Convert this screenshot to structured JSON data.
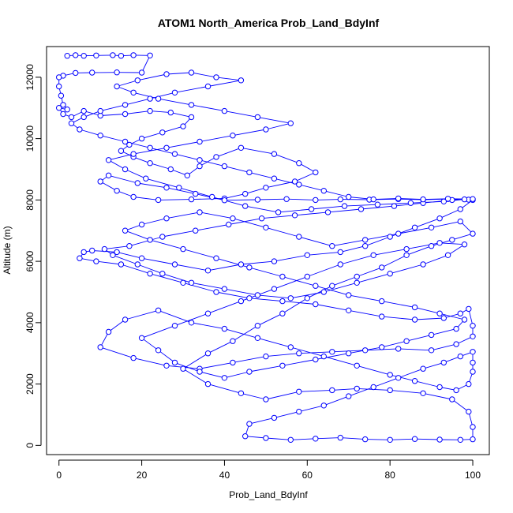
{
  "chart_data": {
    "type": "scatter",
    "title": "ATOM1 North_America Prob_Land_BdyInf",
    "xlabel": "Prob_Land_BdyInf",
    "ylabel": "Altitude (m)",
    "xlim": [
      -3,
      104
    ],
    "ylim": [
      -300,
      13000
    ],
    "x_ticks": [
      0,
      20,
      40,
      60,
      80,
      100
    ],
    "y_ticks": [
      0,
      2000,
      4000,
      6000,
      8000,
      10000,
      12000
    ],
    "grid": false,
    "legend": "none",
    "series": [
      {
        "color": "#0000ff",
        "marker": "open-circle",
        "connected": true,
        "points": [
          [
            2,
            12700
          ],
          [
            4,
            12720
          ],
          [
            6,
            12700
          ],
          [
            9,
            12710
          ],
          [
            13,
            12720
          ],
          [
            15,
            12700
          ],
          [
            18,
            12720
          ],
          [
            22,
            12710
          ],
          [
            20,
            12150
          ],
          [
            14,
            12160
          ],
          [
            8,
            12150
          ],
          [
            4,
            12140
          ],
          [
            1,
            12050
          ],
          [
            0,
            12000
          ],
          [
            0,
            11700
          ],
          [
            0.5,
            11400
          ],
          [
            1,
            11100
          ],
          [
            2,
            10950
          ],
          [
            0,
            11000
          ],
          [
            1,
            10800
          ],
          [
            3,
            10700
          ],
          [
            6,
            10900
          ],
          [
            10,
            10750
          ],
          [
            16,
            10800
          ],
          [
            22,
            10900
          ],
          [
            27,
            10850
          ],
          [
            32,
            10700
          ],
          [
            30,
            10400
          ],
          [
            25,
            10200
          ],
          [
            20,
            10000
          ],
          [
            17,
            9800
          ],
          [
            15,
            9600
          ],
          [
            18,
            9400
          ],
          [
            22,
            9200
          ],
          [
            27,
            9000
          ],
          [
            31,
            8800
          ],
          [
            34,
            9100
          ],
          [
            38,
            9400
          ],
          [
            44,
            9700
          ],
          [
            52,
            9500
          ],
          [
            58,
            9200
          ],
          [
            62,
            8900
          ],
          [
            57,
            8600
          ],
          [
            50,
            8400
          ],
          [
            45,
            8200
          ],
          [
            40,
            8050
          ],
          [
            32,
            8020
          ],
          [
            24,
            8000
          ],
          [
            18,
            8100
          ],
          [
            14,
            8300
          ],
          [
            10,
            8600
          ],
          [
            12,
            8800
          ],
          [
            19,
            8550
          ],
          [
            26,
            8400
          ],
          [
            33,
            8200
          ],
          [
            40,
            7990
          ],
          [
            48,
            8010
          ],
          [
            55,
            8030
          ],
          [
            62,
            8000
          ],
          [
            68,
            8020
          ],
          [
            75,
            8010
          ],
          [
            82,
            8030
          ],
          [
            88,
            8010
          ],
          [
            94,
            8030
          ],
          [
            99,
            8010
          ],
          [
            100,
            8000
          ],
          [
            97,
            7700
          ],
          [
            92,
            7400
          ],
          [
            86,
            7100
          ],
          [
            80,
            6800
          ],
          [
            74,
            6500
          ],
          [
            68,
            6300
          ],
          [
            60,
            6200
          ],
          [
            52,
            6000
          ],
          [
            44,
            5900
          ],
          [
            36,
            5700
          ],
          [
            28,
            5900
          ],
          [
            20,
            6100
          ],
          [
            14,
            6300
          ],
          [
            8,
            6350
          ],
          [
            6,
            6300
          ],
          [
            5,
            6100
          ],
          [
            9,
            6000
          ],
          [
            15,
            5900
          ],
          [
            22,
            5600
          ],
          [
            30,
            5300
          ],
          [
            38,
            5000
          ],
          [
            46,
            4800
          ],
          [
            54,
            4700
          ],
          [
            62,
            4600
          ],
          [
            70,
            4400
          ],
          [
            78,
            4200
          ],
          [
            86,
            4100
          ],
          [
            93,
            4150
          ],
          [
            97,
            4300
          ],
          [
            99,
            4450
          ],
          [
            100,
            3900
          ],
          [
            100,
            3550
          ],
          [
            96,
            3300
          ],
          [
            90,
            3100
          ],
          [
            82,
            3150
          ],
          [
            74,
            3100
          ],
          [
            66,
            3050
          ],
          [
            58,
            3000
          ],
          [
            50,
            2900
          ],
          [
            42,
            2700
          ],
          [
            34,
            2500
          ],
          [
            26,
            2600
          ],
          [
            18,
            2850
          ],
          [
            10,
            3200
          ],
          [
            12,
            3700
          ],
          [
            16,
            4100
          ],
          [
            24,
            4400
          ],
          [
            32,
            4000
          ],
          [
            40,
            3800
          ],
          [
            48,
            3500
          ],
          [
            56,
            3200
          ],
          [
            64,
            2900
          ],
          [
            72,
            2600
          ],
          [
            80,
            2300
          ],
          [
            86,
            2100
          ],
          [
            92,
            1900
          ],
          [
            96,
            1800
          ],
          [
            99,
            2000
          ],
          [
            100,
            2400
          ],
          [
            100,
            2700
          ],
          [
            100,
            3050
          ],
          [
            97,
            2900
          ],
          [
            93,
            2700
          ],
          [
            88,
            2500
          ],
          [
            82,
            2200
          ],
          [
            76,
            1900
          ],
          [
            70,
            1600
          ],
          [
            64,
            1300
          ],
          [
            58,
            1100
          ],
          [
            52,
            900
          ],
          [
            46,
            700
          ],
          [
            45,
            300
          ],
          [
            50,
            240
          ],
          [
            56,
            180
          ],
          [
            62,
            220
          ],
          [
            68,
            250
          ],
          [
            74,
            200
          ],
          [
            80,
            180
          ],
          [
            86,
            210
          ],
          [
            92,
            190
          ],
          [
            97,
            180
          ],
          [
            100,
            200
          ],
          [
            100,
            600
          ],
          [
            99,
            1100
          ],
          [
            95,
            1500
          ],
          [
            88,
            1700
          ],
          [
            80,
            1800
          ],
          [
            72,
            1850
          ],
          [
            66,
            1800
          ],
          [
            58,
            1750
          ],
          [
            50,
            1500
          ],
          [
            44,
            1700
          ],
          [
            36,
            2000
          ],
          [
            30,
            2500
          ],
          [
            36,
            3000
          ],
          [
            42,
            3400
          ],
          [
            48,
            3900
          ],
          [
            54,
            4300
          ],
          [
            60,
            4800
          ],
          [
            66,
            5200
          ],
          [
            72,
            5500
          ],
          [
            78,
            5800
          ],
          [
            84,
            6200
          ],
          [
            90,
            6500
          ],
          [
            95,
            6700
          ],
          [
            100,
            6900
          ],
          [
            97,
            7300
          ],
          [
            90,
            7100
          ],
          [
            82,
            6900
          ],
          [
            74,
            6700
          ],
          [
            66,
            6500
          ],
          [
            58,
            6800
          ],
          [
            50,
            7100
          ],
          [
            42,
            7400
          ],
          [
            34,
            7600
          ],
          [
            26,
            7400
          ],
          [
            20,
            7200
          ],
          [
            16,
            7000
          ],
          [
            22,
            6700
          ],
          [
            30,
            6400
          ],
          [
            38,
            6100
          ],
          [
            46,
            5800
          ],
          [
            54,
            5500
          ],
          [
            62,
            5200
          ],
          [
            70,
            4900
          ],
          [
            78,
            4700
          ],
          [
            86,
            4500
          ],
          [
            92,
            4300
          ],
          [
            98,
            4100
          ],
          [
            96,
            3800
          ],
          [
            90,
            3600
          ],
          [
            84,
            3400
          ],
          [
            78,
            3200
          ],
          [
            70,
            3000
          ],
          [
            62,
            2800
          ],
          [
            54,
            2600
          ],
          [
            46,
            2400
          ],
          [
            40,
            2200
          ],
          [
            34,
            2400
          ],
          [
            28,
            2700
          ],
          [
            24,
            3100
          ],
          [
            20,
            3500
          ],
          [
            28,
            3900
          ],
          [
            36,
            4300
          ],
          [
            44,
            4700
          ],
          [
            52,
            5100
          ],
          [
            60,
            5500
          ],
          [
            68,
            5900
          ],
          [
            76,
            6200
          ],
          [
            84,
            6400
          ],
          [
            92,
            6600
          ],
          [
            98,
            6550
          ],
          [
            94,
            6200
          ],
          [
            88,
            5900
          ],
          [
            80,
            5600
          ],
          [
            72,
            5300
          ],
          [
            64,
            5000
          ],
          [
            56,
            4800
          ],
          [
            48,
            4900
          ],
          [
            40,
            5100
          ],
          [
            32,
            5300
          ],
          [
            25,
            5600
          ],
          [
            19,
            5900
          ],
          [
            13,
            6200
          ],
          [
            11,
            6400
          ],
          [
            17,
            6500
          ],
          [
            25,
            6800
          ],
          [
            33,
            7000
          ],
          [
            41,
            7200
          ],
          [
            49,
            7400
          ],
          [
            57,
            7500
          ],
          [
            65,
            7600
          ],
          [
            73,
            7700
          ],
          [
            81,
            7800
          ],
          [
            88,
            7900
          ],
          [
            95,
            8000
          ],
          [
            98,
            8020
          ],
          [
            93,
            7950
          ],
          [
            85,
            7900
          ],
          [
            77,
            7850
          ],
          [
            69,
            7800
          ],
          [
            61,
            7700
          ],
          [
            53,
            7600
          ],
          [
            45,
            7800
          ],
          [
            37,
            8100
          ],
          [
            29,
            8400
          ],
          [
            21,
            8700
          ],
          [
            16,
            9000
          ],
          [
            12,
            9300
          ],
          [
            18,
            9500
          ],
          [
            26,
            9700
          ],
          [
            34,
            9900
          ],
          [
            42,
            10100
          ],
          [
            50,
            10300
          ],
          [
            56,
            10500
          ],
          [
            48,
            10700
          ],
          [
            40,
            10900
          ],
          [
            32,
            11100
          ],
          [
            24,
            11300
          ],
          [
            18,
            11500
          ],
          [
            14,
            11700
          ],
          [
            19,
            11900
          ],
          [
            26,
            12100
          ],
          [
            32,
            12150
          ],
          [
            38,
            12000
          ],
          [
            44,
            11900
          ],
          [
            36,
            11700
          ],
          [
            28,
            11500
          ],
          [
            22,
            11300
          ],
          [
            16,
            11100
          ],
          [
            10,
            10900
          ],
          [
            6,
            10700
          ],
          [
            3,
            10500
          ],
          [
            5,
            10300
          ],
          [
            10,
            10100
          ],
          [
            16,
            9900
          ],
          [
            22,
            9700
          ],
          [
            28,
            9500
          ],
          [
            34,
            9300
          ],
          [
            40,
            9100
          ],
          [
            46,
            8900
          ],
          [
            52,
            8700
          ],
          [
            58,
            8500
          ],
          [
            64,
            8300
          ],
          [
            70,
            8100
          ],
          [
            76,
            8020
          ],
          [
            82,
            8050
          ],
          [
            88,
            8020
          ],
          [
            94,
            8040
          ],
          [
            100,
            8030
          ]
        ]
      }
    ]
  }
}
